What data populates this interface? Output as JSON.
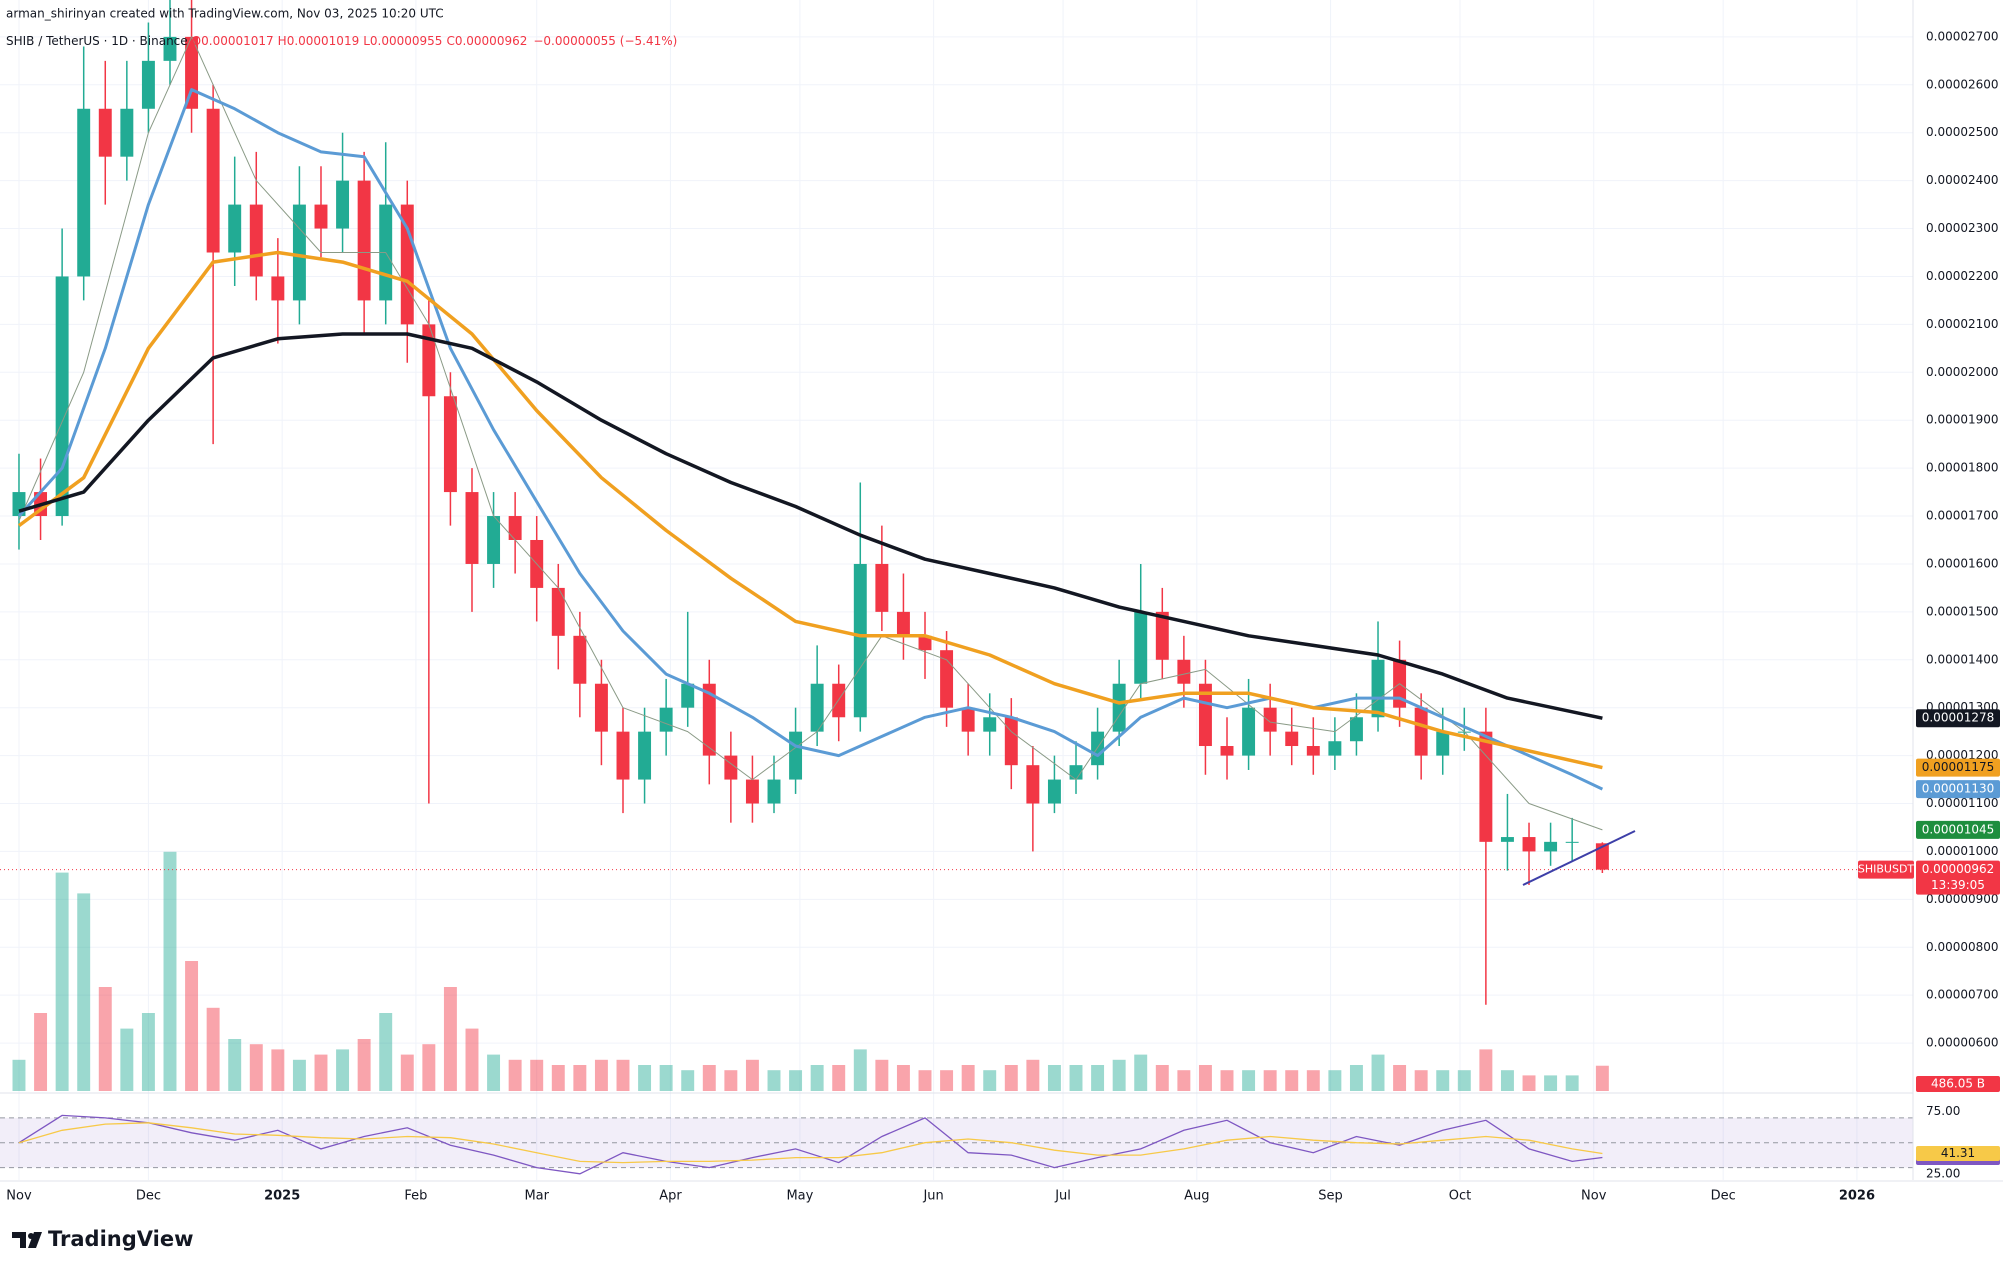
{
  "header": {
    "author": "arman_shirinyan created with TradingView.com, Nov 03, 2025 10:20 UTC",
    "symbol": "SHIB / TetherUS · 1D · Binance",
    "ohlc": [
      "O",
      "0.00001017",
      "H",
      "0.00001019",
      "L",
      "0.00000955",
      "C",
      "0.00000962",
      "−0.00000055 (−5.41%)"
    ]
  },
  "logo": "TradingView",
  "chart_data": [
    {
      "type": "candlestick",
      "x": [
        0,
        5,
        10,
        15,
        20,
        25,
        30,
        35,
        40,
        45,
        50,
        55,
        60,
        65,
        70,
        75,
        80,
        85,
        90,
        95,
        100,
        105,
        110,
        115,
        120,
        125,
        130,
        135,
        140,
        145,
        150,
        155,
        160,
        165,
        170,
        175,
        180,
        185,
        190,
        195,
        200,
        205,
        210,
        215,
        220,
        225,
        230,
        235,
        240,
        245,
        250,
        255,
        260,
        265,
        270,
        275,
        280,
        285,
        290,
        295,
        300,
        305,
        310,
        315,
        320,
        325,
        330,
        335,
        340,
        345,
        350,
        355,
        360,
        367
      ],
      "open": [
        1.7e-05,
        1.75e-05,
        1.7e-05,
        2.2e-05,
        2.55e-05,
        2.45e-05,
        2.55e-05,
        2.65e-05,
        2.7e-05,
        2.55e-05,
        2.25e-05,
        2.35e-05,
        2.2e-05,
        2.15e-05,
        2.35e-05,
        2.3e-05,
        2.4e-05,
        2.15e-05,
        2.35e-05,
        2.1e-05,
        1.95e-05,
        1.75e-05,
        1.6e-05,
        1.7e-05,
        1.65e-05,
        1.55e-05,
        1.45e-05,
        1.35e-05,
        1.25e-05,
        1.15e-05,
        1.25e-05,
        1.3e-05,
        1.35e-05,
        1.2e-05,
        1.15e-05,
        1.1e-05,
        1.15e-05,
        1.25e-05,
        1.35e-05,
        1.28e-05,
        1.6e-05,
        1.5e-05,
        1.45e-05,
        1.42e-05,
        1.3e-05,
        1.25e-05,
        1.28e-05,
        1.18e-05,
        1.1e-05,
        1.15e-05,
        1.18e-05,
        1.25e-05,
        1.35e-05,
        1.5e-05,
        1.4e-05,
        1.35e-05,
        1.22e-05,
        1.2e-05,
        1.3e-05,
        1.25e-05,
        1.22e-05,
        1.2e-05,
        1.23e-05,
        1.28e-05,
        1.4e-05,
        1.3e-05,
        1.2e-05,
        1.25e-05,
        1.25e-05,
        1.02e-05,
        1.03e-05,
        1e-05,
        1.02e-05,
        1.017e-05
      ],
      "high": [
        1.83e-05,
        1.82e-05,
        2.3e-05,
        2.68e-05,
        2.65e-05,
        2.65e-05,
        2.73e-05,
        2.8e-05,
        2.78e-05,
        2.6e-05,
        2.45e-05,
        2.46e-05,
        2.28e-05,
        2.43e-05,
        2.43e-05,
        2.5e-05,
        2.46e-05,
        2.48e-05,
        2.4e-05,
        2.15e-05,
        2e-05,
        1.8e-05,
        1.75e-05,
        1.75e-05,
        1.7e-05,
        1.6e-05,
        1.5e-05,
        1.4e-05,
        1.3e-05,
        1.3e-05,
        1.36e-05,
        1.5e-05,
        1.4e-05,
        1.25e-05,
        1.2e-05,
        1.2e-05,
        1.3e-05,
        1.43e-05,
        1.39e-05,
        1.77e-05,
        1.68e-05,
        1.58e-05,
        1.5e-05,
        1.46e-05,
        1.35e-05,
        1.33e-05,
        1.32e-05,
        1.22e-05,
        1.2e-05,
        1.23e-05,
        1.3e-05,
        1.4e-05,
        1.6e-05,
        1.55e-05,
        1.45e-05,
        1.4e-05,
        1.28e-05,
        1.36e-05,
        1.35e-05,
        1.3e-05,
        1.28e-05,
        1.28e-05,
        1.33e-05,
        1.48e-05,
        1.44e-05,
        1.33e-05,
        1.3e-05,
        1.3e-05,
        1.3e-05,
        1.12e-05,
        1.06e-05,
        1.06e-05,
        1.07e-05,
        1.019e-05
      ],
      "low": [
        1.63e-05,
        1.65e-05,
        1.68e-05,
        2.15e-05,
        2.35e-05,
        2.4e-05,
        2.5e-05,
        2.6e-05,
        2.5e-05,
        1.85e-05,
        2.18e-05,
        2.15e-05,
        2.06e-05,
        2.1e-05,
        2.24e-05,
        2.25e-05,
        2.08e-05,
        2.1e-05,
        2.02e-05,
        1.1e-05,
        1.68e-05,
        1.5e-05,
        1.55e-05,
        1.58e-05,
        1.48e-05,
        1.38e-05,
        1.28e-05,
        1.18e-05,
        1.08e-05,
        1.1e-05,
        1.2e-05,
        1.26e-05,
        1.14e-05,
        1.06e-05,
        1.06e-05,
        1.08e-05,
        1.12e-05,
        1.22e-05,
        1.23e-05,
        1.25e-05,
        1.46e-05,
        1.4e-05,
        1.36e-05,
        1.26e-05,
        1.2e-05,
        1.2e-05,
        1.13e-05,
        1e-05,
        1.08e-05,
        1.12e-05,
        1.15e-05,
        1.22e-05,
        1.32e-05,
        1.36e-05,
        1.3e-05,
        1.16e-05,
        1.15e-05,
        1.17e-05,
        1.2e-05,
        1.18e-05,
        1.16e-05,
        1.17e-05,
        1.2e-05,
        1.25e-05,
        1.26e-05,
        1.15e-05,
        1.16e-05,
        1.21e-05,
        6.8e-06,
        9.6e-06,
        9.3e-06,
        9.7e-06,
        9.8e-06,
        9.55e-06
      ],
      "close": [
        1.75e-05,
        1.7e-05,
        2.2e-05,
        2.55e-05,
        2.45e-05,
        2.55e-05,
        2.65e-05,
        2.7e-05,
        2.55e-05,
        2.25e-05,
        2.35e-05,
        2.2e-05,
        2.15e-05,
        2.35e-05,
        2.3e-05,
        2.4e-05,
        2.15e-05,
        2.35e-05,
        2.1e-05,
        1.95e-05,
        1.75e-05,
        1.6e-05,
        1.7e-05,
        1.65e-05,
        1.55e-05,
        1.45e-05,
        1.35e-05,
        1.25e-05,
        1.15e-05,
        1.25e-05,
        1.3e-05,
        1.35e-05,
        1.2e-05,
        1.15e-05,
        1.1e-05,
        1.15e-05,
        1.25e-05,
        1.35e-05,
        1.28e-05,
        1.6e-05,
        1.5e-05,
        1.45e-05,
        1.42e-05,
        1.3e-05,
        1.25e-05,
        1.28e-05,
        1.18e-05,
        1.1e-05,
        1.15e-05,
        1.18e-05,
        1.25e-05,
        1.35e-05,
        1.5e-05,
        1.4e-05,
        1.35e-05,
        1.22e-05,
        1.2e-05,
        1.3e-05,
        1.25e-05,
        1.22e-05,
        1.2e-05,
        1.23e-05,
        1.28e-05,
        1.4e-05,
        1.3e-05,
        1.2e-05,
        1.25e-05,
        1.25e-05,
        1.02e-05,
        1.03e-05,
        1e-05,
        1.02e-05,
        1.02e-05,
        9.62e-06
      ],
      "up_color": "#22ab94",
      "down_color": "#f23645",
      "last_label": "0.00000962",
      "countdown": "13:39:05",
      "symbol_tag": "SHIBUSDT",
      "xlim": [
        -4.4,
        439
      ],
      "xticks": [
        {
          "value": 0,
          "label": "Nov"
        },
        {
          "value": 30,
          "label": "Dec"
        },
        {
          "value": 61,
          "label": "2025"
        },
        {
          "value": 92,
          "label": "Feb"
        },
        {
          "value": 120,
          "label": "Mar"
        },
        {
          "value": 151,
          "label": "Apr"
        },
        {
          "value": 181,
          "label": "May"
        },
        {
          "value": 212,
          "label": "Jun"
        },
        {
          "value": 242,
          "label": "Jul"
        },
        {
          "value": 273,
          "label": "Aug"
        },
        {
          "value": 304,
          "label": "Sep"
        },
        {
          "value": 334,
          "label": "Oct"
        },
        {
          "value": 365,
          "label": "Nov"
        },
        {
          "value": 395,
          "label": "Dec"
        },
        {
          "value": 426,
          "label": "2026"
        }
      ],
      "ylim": [
        5e-06,
        2.777e-05
      ],
      "yticks": [
        {
          "value": 6e-06,
          "label": "0.00000600"
        },
        {
          "value": 7e-06,
          "label": "0.00000700"
        },
        {
          "value": 8e-06,
          "label": "0.00000800"
        },
        {
          "value": 9e-06,
          "label": "0.00000900"
        },
        {
          "value": 1e-05,
          "label": "0.00001000"
        },
        {
          "value": 1.1e-05,
          "label": "0.00001100"
        },
        {
          "value": 1.2e-05,
          "label": "0.00001200"
        },
        {
          "value": 1.3e-05,
          "label": "0.00001300"
        },
        {
          "value": 1.4e-05,
          "label": "0.00001400"
        },
        {
          "value": 1.5e-05,
          "label": "0.00001500"
        },
        {
          "value": 1.6e-05,
          "label": "0.00001600"
        },
        {
          "value": 1.7e-05,
          "label": "0.00001700"
        },
        {
          "value": 1.8e-05,
          "label": "0.00001800"
        },
        {
          "value": 1.9e-05,
          "label": "0.00001900"
        },
        {
          "value": 2e-05,
          "label": "0.00002000"
        },
        {
          "value": 2.1e-05,
          "label": "0.00002100"
        },
        {
          "value": 2.2e-05,
          "label": "0.00002200"
        },
        {
          "value": 2.3e-05,
          "label": "0.00002300"
        },
        {
          "value": 2.4e-05,
          "label": "0.00002400"
        },
        {
          "value": 2.5e-05,
          "label": "0.00002500"
        },
        {
          "value": 2.6e-05,
          "label": "0.00002600"
        },
        {
          "value": 2.7e-05,
          "label": "0.00002700"
        }
      ],
      "grid": true,
      "series": [
        {
          "color": "#8a9a86",
          "width": 1,
          "label_color": "#1e8e3e",
          "label_text_color": "#ffffff",
          "last_label": "0.00001045",
          "x": [
            0,
            15,
            30,
            40,
            55,
            70,
            85,
            95,
            110,
            125,
            140,
            155,
            170,
            185,
            200,
            215,
            230,
            245,
            260,
            275,
            290,
            305,
            320,
            335,
            350,
            367
          ],
          "values": [
            1.69e-05,
            2e-05,
            2.5e-05,
            2.7e-05,
            2.4e-05,
            2.25e-05,
            2.25e-05,
            2.1e-05,
            1.7e-05,
            1.55e-05,
            1.3e-05,
            1.25e-05,
            1.15e-05,
            1.25e-05,
            1.45e-05,
            1.4e-05,
            1.25e-05,
            1.15e-05,
            1.35e-05,
            1.38e-05,
            1.27e-05,
            1.25e-05,
            1.35e-05,
            1.25e-05,
            1.1e-05,
            1.045e-05
          ]
        },
        {
          "color": "#5b9bd5",
          "width": 3,
          "label_color": "#5b9bd5",
          "label_text_color": "#ffffff",
          "last_label": "0.00001130",
          "x": [
            0,
            10,
            20,
            30,
            40,
            50,
            60,
            70,
            80,
            90,
            100,
            110,
            120,
            130,
            140,
            150,
            160,
            170,
            180,
            190,
            200,
            210,
            220,
            230,
            240,
            250,
            260,
            270,
            280,
            290,
            300,
            310,
            320,
            330,
            340,
            350,
            360,
            367
          ],
          "values": [
            1.7e-05,
            1.8e-05,
            2.05e-05,
            2.35e-05,
            2.59e-05,
            2.55e-05,
            2.5e-05,
            2.46e-05,
            2.45e-05,
            2.3e-05,
            2.05e-05,
            1.88e-05,
            1.73e-05,
            1.58e-05,
            1.46e-05,
            1.37e-05,
            1.33e-05,
            1.28e-05,
            1.22e-05,
            1.2e-05,
            1.24e-05,
            1.28e-05,
            1.3e-05,
            1.28e-05,
            1.25e-05,
            1.2e-05,
            1.28e-05,
            1.32e-05,
            1.3e-05,
            1.32e-05,
            1.3e-05,
            1.32e-05,
            1.32e-05,
            1.28e-05,
            1.24e-05,
            1.2e-05,
            1.16e-05,
            1.13e-05
          ]
        },
        {
          "color": "#f0a020",
          "width": 3.5,
          "label_color": "#f0a020",
          "label_text_color": "#131722",
          "last_label": "0.00001175",
          "x": [
            0,
            15,
            30,
            45,
            60,
            75,
            90,
            105,
            120,
            135,
            150,
            165,
            180,
            195,
            210,
            225,
            240,
            255,
            270,
            285,
            300,
            315,
            330,
            345,
            367
          ],
          "values": [
            1.68e-05,
            1.78e-05,
            2.05e-05,
            2.23e-05,
            2.25e-05,
            2.23e-05,
            2.19e-05,
            2.08e-05,
            1.92e-05,
            1.78e-05,
            1.67e-05,
            1.57e-05,
            1.48e-05,
            1.45e-05,
            1.45e-05,
            1.41e-05,
            1.35e-05,
            1.31e-05,
            1.33e-05,
            1.33e-05,
            1.3e-05,
            1.29e-05,
            1.25e-05,
            1.22e-05,
            1.175e-05
          ]
        },
        {
          "color": "#131722",
          "width": 3.5,
          "label_color": "#131722",
          "label_text_color": "#ffffff",
          "last_label": "0.00001278",
          "x": [
            0,
            15,
            30,
            45,
            60,
            75,
            90,
            105,
            120,
            135,
            150,
            165,
            180,
            195,
            210,
            225,
            240,
            255,
            270,
            285,
            300,
            315,
            330,
            345,
            367
          ],
          "values": [
            1.71e-05,
            1.75e-05,
            1.9e-05,
            2.03e-05,
            2.07e-05,
            2.08e-05,
            2.08e-05,
            2.05e-05,
            1.98e-05,
            1.9e-05,
            1.83e-05,
            1.77e-05,
            1.72e-05,
            1.66e-05,
            1.61e-05,
            1.58e-05,
            1.55e-05,
            1.51e-05,
            1.48e-05,
            1.45e-05,
            1.43e-05,
            1.41e-05,
            1.37e-05,
            1.32e-05,
            1.278e-05
          ]
        }
      ],
      "volume": {
        "ylim": [
          0,
          5000
        ],
        "last_label": "486.05 B",
        "values": [
          600,
          1500,
          4200,
          3800,
          2000,
          1200,
          1500,
          4600,
          2500,
          1600,
          1000,
          900,
          800,
          600,
          700,
          800,
          1000,
          1500,
          700,
          900,
          2000,
          1200,
          700,
          600,
          600,
          500,
          500,
          600,
          600,
          500,
          500,
          400,
          500,
          400,
          600,
          400,
          400,
          500,
          500,
          800,
          600,
          500,
          400,
          400,
          500,
          400,
          500,
          600,
          500,
          500,
          500,
          600,
          700,
          500,
          400,
          500,
          400,
          400,
          400,
          400,
          400,
          400,
          500,
          700,
          500,
          400,
          400,
          400,
          800,
          400,
          300,
          300,
          300,
          486.05
        ]
      }
    },
    {
      "type": "line",
      "x": [
        0,
        10,
        20,
        30,
        40,
        50,
        60,
        70,
        80,
        90,
        100,
        110,
        120,
        130,
        140,
        150,
        160,
        170,
        180,
        190,
        200,
        210,
        220,
        230,
        240,
        250,
        260,
        270,
        280,
        290,
        300,
        310,
        320,
        330,
        340,
        350,
        360,
        367
      ],
      "series": [
        {
          "color": "#7e57c2",
          "label_text_color": "#ffffff",
          "values": [
            50,
            72,
            70,
            66,
            58,
            52,
            60,
            45,
            55,
            62,
            48,
            40,
            30,
            25,
            42,
            35,
            30,
            38,
            45,
            34,
            55,
            70,
            42,
            40,
            30,
            38,
            45,
            60,
            68,
            50,
            42,
            55,
            48,
            60,
            68,
            45,
            35,
            38.09
          ]
        },
        {
          "color": "#f7c948",
          "label_text_color": "#131722",
          "values": [
            50,
            60,
            65,
            66,
            62,
            57,
            56,
            54,
            53,
            55,
            54,
            49,
            42,
            35,
            34,
            35,
            35,
            36,
            38,
            38,
            42,
            50,
            53,
            50,
            44,
            40,
            40,
            45,
            52,
            55,
            52,
            50,
            49,
            52,
            55,
            52,
            45,
            41.31
          ]
        }
      ],
      "ylim": [
        20,
        90
      ],
      "yticks": [
        {
          "value": 75,
          "label": "75.00"
        },
        {
          "value": 25,
          "label": "25.00"
        }
      ],
      "levels": [
        70,
        50,
        30
      ],
      "band_color": "#7e57c2"
    }
  ]
}
